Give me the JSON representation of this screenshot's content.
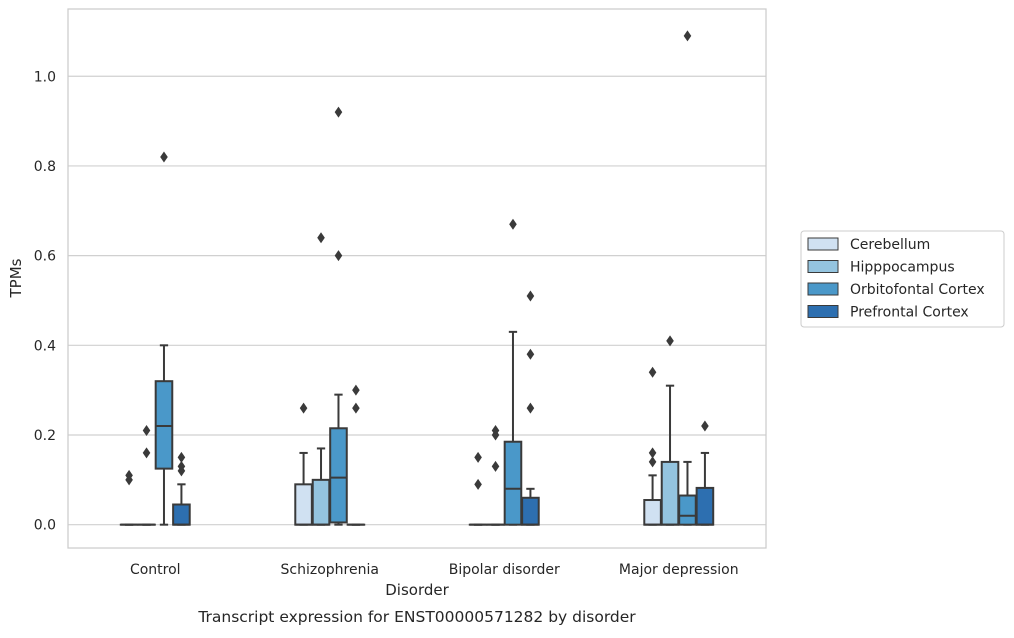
{
  "chart_data": {
    "type": "box",
    "title": "Transcript expression for ENST00000571282 by disorder",
    "xlabel": "Disorder",
    "ylabel": "TPMs",
    "ylim": [
      -0.052,
      1.15
    ],
    "yticks": [
      0.0,
      0.2,
      0.4,
      0.6,
      0.8,
      1.0
    ],
    "ytick_labels": [
      "0.0",
      "0.2",
      "0.4",
      "0.6",
      "0.8",
      "1.0"
    ],
    "grid": "horizontal",
    "legend_placement": "right",
    "categories": [
      "Control",
      "Schizophrenia",
      "Bipolar disorder",
      "Major depression"
    ],
    "series": [
      {
        "name": "Cerebellum",
        "color": "#d0e1f2",
        "boxes": [
          {
            "q1": 0.0,
            "median": 0.0,
            "q3": 0.0,
            "whisker_low": 0.0,
            "whisker_high": 0.0,
            "outliers": [
              0.1,
              0.11
            ]
          },
          {
            "q1": 0.0,
            "median": 0.0,
            "q3": 0.09,
            "whisker_low": 0.0,
            "whisker_high": 0.16,
            "outliers": [
              0.26
            ]
          },
          {
            "q1": 0.0,
            "median": 0.0,
            "q3": 0.0,
            "whisker_low": 0.0,
            "whisker_high": 0.0,
            "outliers": [
              0.09,
              0.15
            ]
          },
          {
            "q1": 0.0,
            "median": 0.0,
            "q3": 0.055,
            "whisker_low": 0.0,
            "whisker_high": 0.11,
            "outliers": [
              0.14,
              0.16,
              0.34
            ]
          }
        ]
      },
      {
        "name": "Hipppocampus",
        "color": "#94c4df",
        "boxes": [
          {
            "q1": 0.0,
            "median": 0.0,
            "q3": 0.0,
            "whisker_low": 0.0,
            "whisker_high": 0.0,
            "outliers": [
              0.16,
              0.21
            ]
          },
          {
            "q1": 0.0,
            "median": 0.0,
            "q3": 0.1,
            "whisker_low": 0.0,
            "whisker_high": 0.17,
            "outliers": [
              0.64
            ]
          },
          {
            "q1": 0.0,
            "median": 0.0,
            "q3": 0.0,
            "whisker_low": 0.0,
            "whisker_high": 0.0,
            "outliers": [
              0.13,
              0.2,
              0.21
            ]
          },
          {
            "q1": 0.0,
            "median": 0.0,
            "q3": 0.14,
            "whisker_low": 0.0,
            "whisker_high": 0.31,
            "outliers": [
              0.41
            ]
          }
        ]
      },
      {
        "name": "Orbitofontal Cortex",
        "color": "#4a98c9",
        "boxes": [
          {
            "q1": 0.125,
            "median": 0.22,
            "q3": 0.32,
            "whisker_low": 0.0,
            "whisker_high": 0.4,
            "outliers": [
              0.82
            ]
          },
          {
            "q1": 0.005,
            "median": 0.105,
            "q3": 0.215,
            "whisker_low": 0.0,
            "whisker_high": 0.29,
            "outliers": [
              0.6,
              0.92
            ]
          },
          {
            "q1": 0.0,
            "median": 0.08,
            "q3": 0.185,
            "whisker_low": 0.0,
            "whisker_high": 0.43,
            "outliers": [
              0.67
            ]
          },
          {
            "q1": 0.0,
            "median": 0.02,
            "q3": 0.065,
            "whisker_low": 0.0,
            "whisker_high": 0.14,
            "outliers": [
              1.09
            ]
          }
        ]
      },
      {
        "name": "Prefrontal Cortex",
        "color": "#2d6fb0",
        "boxes": [
          {
            "q1": 0.0,
            "median": 0.0,
            "q3": 0.045,
            "whisker_low": 0.0,
            "whisker_high": 0.09,
            "outliers": [
              0.12,
              0.13,
              0.15
            ]
          },
          {
            "q1": 0.0,
            "median": 0.0,
            "q3": 0.0,
            "whisker_low": 0.0,
            "whisker_high": 0.0,
            "outliers": [
              0.26,
              0.3
            ]
          },
          {
            "q1": 0.0,
            "median": 0.0,
            "q3": 0.06,
            "whisker_low": 0.0,
            "whisker_high": 0.08,
            "outliers": [
              0.26,
              0.38,
              0.51
            ]
          },
          {
            "q1": 0.0,
            "median": 0.0,
            "q3": 0.082,
            "whisker_low": 0.0,
            "whisker_high": 0.16,
            "outliers": [
              0.22
            ]
          }
        ]
      }
    ]
  }
}
